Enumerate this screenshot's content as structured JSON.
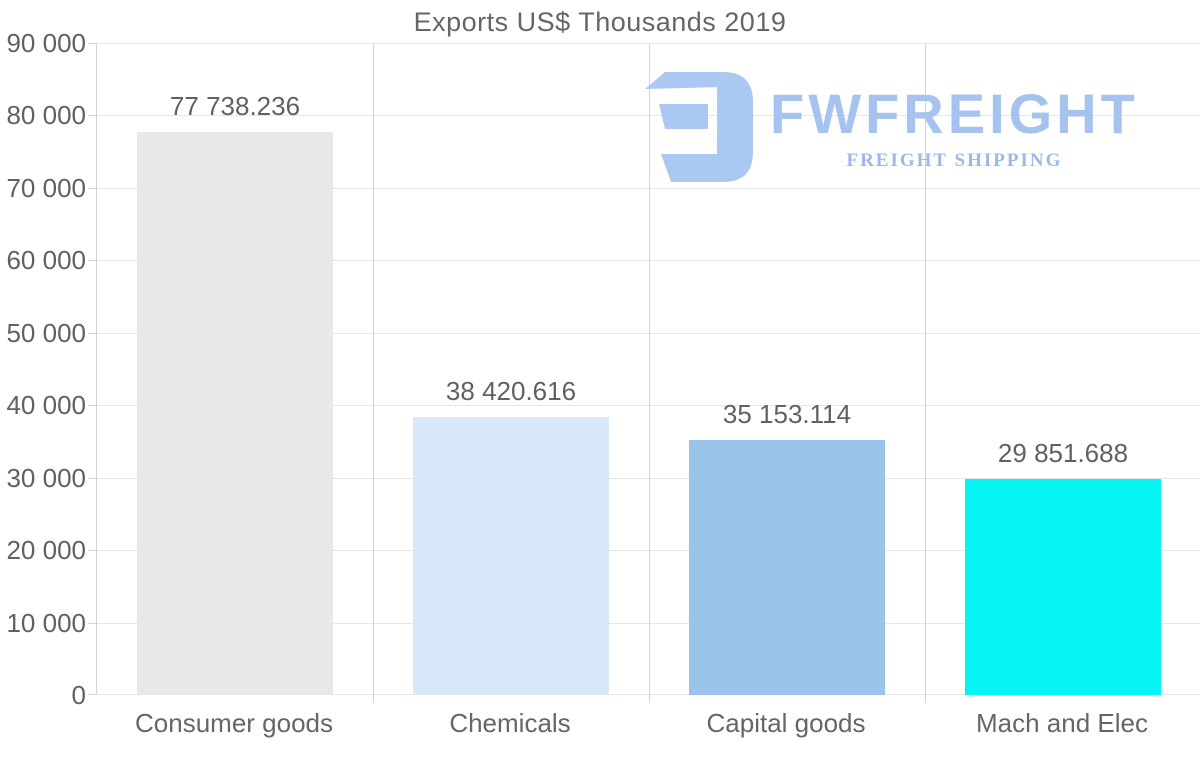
{
  "title": "Exports US$ Thousands 2019",
  "logo": {
    "name": "FWFREIGHT",
    "tagline": "FREIGHT SHIPPING",
    "icon": "fwfreight-f-mark",
    "color": "#a6c2ef",
    "icon_color": "#abc8f2"
  },
  "chart_data": {
    "type": "bar",
    "title": "Exports US$ Thousands 2019",
    "categories": [
      "Consumer goods",
      "Chemicals",
      "Capital goods",
      "Mach and Elec"
    ],
    "values": [
      77738.236,
      38420.616,
      35153.114,
      29851.688
    ],
    "value_labels": [
      "77 738.236",
      "38 420.616",
      "35 153.114",
      "29 851.688"
    ],
    "bar_colors": [
      "#e8e8e8",
      "#d8e8f8",
      "#9ac3e9",
      "#06f4f4"
    ],
    "xlabel": "",
    "ylabel": "",
    "ylim": [
      0,
      90000
    ],
    "y_tick_step": 10000,
    "y_tick_labels": [
      "0",
      "10 000",
      "20 000",
      "30 000",
      "40 000",
      "50 000",
      "60 000",
      "70 000",
      "80 000",
      "90 000"
    ],
    "grid": true,
    "legend": false
  },
  "colors": {
    "axis_text": "#616161",
    "category_text": "#666666",
    "title_text": "#666666",
    "h_gridline": "#e7e7e7",
    "v_gridline": "#d4d4d4",
    "axis_line": "#d4d4d4",
    "tick_mark": "#d4d4d4",
    "background": "#ffffff"
  }
}
